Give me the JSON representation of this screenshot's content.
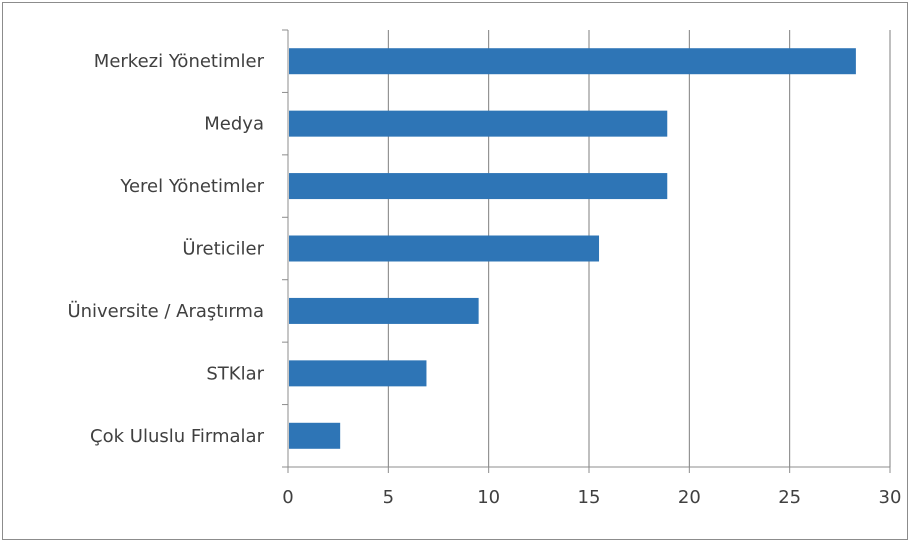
{
  "chart_data": {
    "type": "bar",
    "orientation": "horizontal",
    "categories": [
      "Merkezi Yönetimler",
      "Medya",
      "Yerel Yönetimler",
      "Üreticiler",
      "Üniversite / Araştırma",
      "STKlar",
      "Çok Uluslu Firmalar"
    ],
    "values": [
      28.3,
      18.9,
      18.9,
      15.5,
      9.5,
      6.9,
      2.6
    ],
    "xticks": [
      0,
      5,
      10,
      15,
      20,
      25,
      30
    ],
    "xlim": [
      0,
      30
    ],
    "grid": true,
    "bar_color": "#2e75b6",
    "grid_color": "#7f7f7f",
    "title": "",
    "xlabel": "",
    "ylabel": ""
  }
}
